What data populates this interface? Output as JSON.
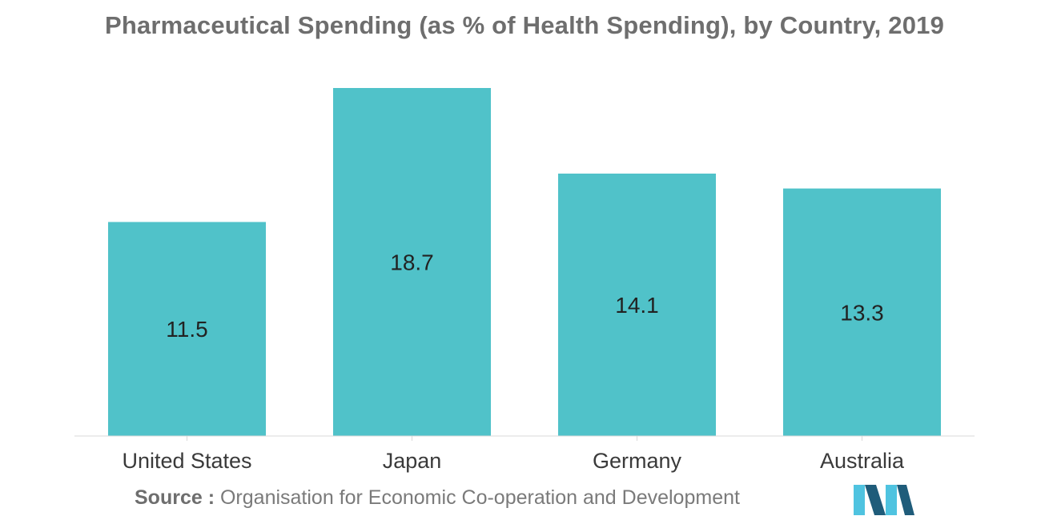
{
  "chart_data": {
    "type": "bar",
    "title": "Pharmaceutical Spending (as % of Health Spending), by Country, 2019",
    "categories": [
      "United States",
      "Japan",
      "Germany",
      "Australia"
    ],
    "values": [
      11.5,
      18.7,
      14.1,
      13.3
    ],
    "value_labels": [
      "11.5",
      "18.7",
      "14.1",
      "13.3"
    ],
    "xlabel": "",
    "ylabel": "",
    "ylim": [
      0,
      20
    ],
    "grid": false,
    "bar_color": "#50c2c9"
  },
  "source": {
    "label": "Source :",
    "text": "Organisation for Economic Co-operation and Development"
  },
  "colors": {
    "bar": "#50c2c9",
    "title": "#6e6e6e",
    "axis": "#d9d9d9",
    "logo_dark": "#1f5c7a",
    "logo_light": "#4fc3e0"
  }
}
